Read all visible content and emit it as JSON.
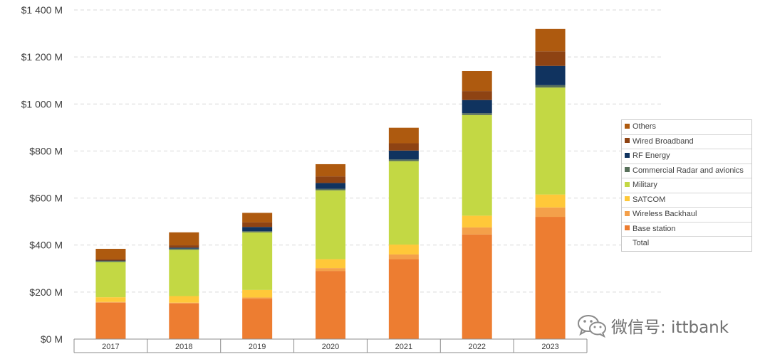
{
  "chart_data": {
    "type": "bar",
    "stacked": true,
    "categories": [
      "2017",
      "2018",
      "2019",
      "2020",
      "2021",
      "2022",
      "2023"
    ],
    "ylim": [
      0,
      1400
    ],
    "ytick_values": [
      0,
      200,
      400,
      600,
      800,
      1000,
      1200,
      1400
    ],
    "ytick_labels": [
      "$0 M",
      "$200 M",
      "$400 M",
      "$600 M",
      "$800 M",
      "$1 000 M",
      "$1 200 M",
      "$1 400 M"
    ],
    "grid": "horizontal dashed",
    "legend_position": "right",
    "series": [
      {
        "name": "Base station",
        "color": "#ED7D31",
        "values": [
          155,
          152,
          172,
          290,
          340,
          445,
          520
        ]
      },
      {
        "name": "Wireless Backhaul",
        "color": "#F4A04A",
        "values": [
          3,
          3,
          5,
          12,
          20,
          30,
          40
        ]
      },
      {
        "name": "SATCOM",
        "color": "#FFC839",
        "values": [
          20,
          28,
          32,
          38,
          42,
          50,
          55
        ]
      },
      {
        "name": "Military",
        "color": "#C3D844",
        "values": [
          150,
          197,
          245,
          293,
          355,
          428,
          455
        ]
      },
      {
        "name": "Commercial Radar and avionics",
        "color": "#58705A",
        "values": [
          4,
          5,
          5,
          6,
          7,
          8,
          10
        ]
      },
      {
        "name": "RF Energy",
        "color": "#10335F",
        "values": [
          2,
          4,
          18,
          25,
          38,
          56,
          82
        ]
      },
      {
        "name": "Wired Broadband",
        "color": "#8E4313",
        "values": [
          6,
          10,
          20,
          28,
          31,
          38,
          62
        ]
      },
      {
        "name": "Others",
        "color": "#AE5A0F",
        "values": [
          44,
          55,
          40,
          52,
          66,
          85,
          95
        ]
      }
    ],
    "legend_entries": [
      "Others",
      "Wired Broadband",
      "RF Energy",
      "Commercial Radar and avionics",
      "Military",
      "SATCOM",
      "Wireless Backhaul",
      "Base station",
      "Total"
    ]
  },
  "watermark": {
    "text": "微信号: ittbank",
    "icon": "wechat-icon"
  }
}
